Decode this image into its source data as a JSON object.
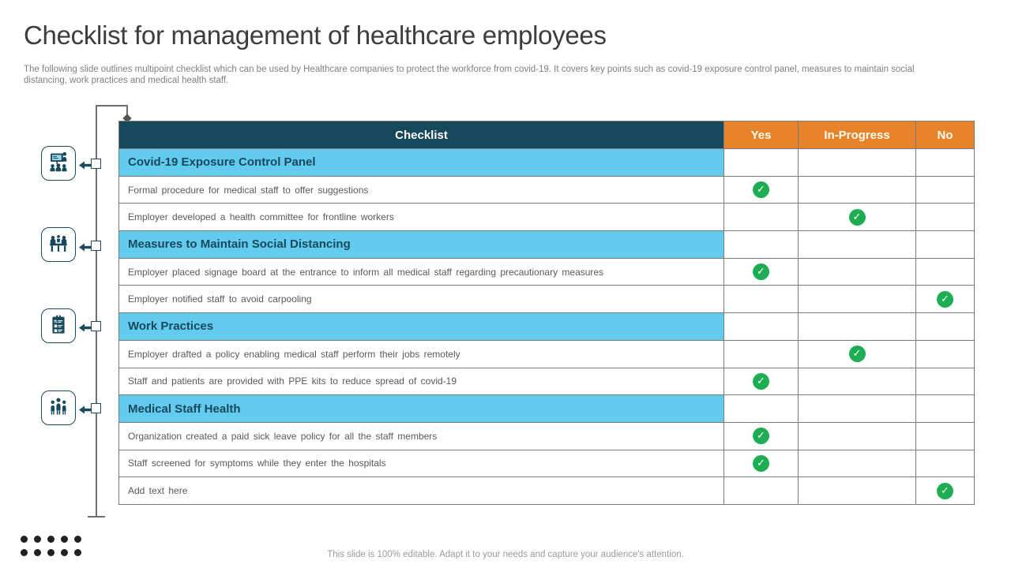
{
  "slide": {
    "title": "Checklist for management of healthcare employees",
    "subtitle": "The following slide outlines multipoint checklist which can be used by Healthcare companies to protect the workforce from covid-19. It covers key points such as covid-19 exposure control panel, measures to maintain social distancing, work practices and medical health staff.",
    "footer": "This slide is 100% editable. Adapt it to your needs and capture your audience's attention."
  },
  "icons": [
    {
      "name": "training-presentation-icon"
    },
    {
      "name": "meeting-table-icon"
    },
    {
      "name": "checklist-clipboard-icon"
    },
    {
      "name": "staff-group-icon"
    }
  ],
  "table": {
    "columns": [
      "Checklist",
      "Yes",
      "In-Progress",
      "No"
    ],
    "rows": [
      {
        "type": "section",
        "label": "Covid-19 Exposure Control Panel",
        "check": null
      },
      {
        "type": "item",
        "label": "Formal procedure for medical staff to offer suggestions",
        "check": "yes"
      },
      {
        "type": "item",
        "label": "Employer developed a health committee for frontline workers",
        "check": "in_progress"
      },
      {
        "type": "section",
        "label": "Measures to Maintain Social Distancing",
        "check": null
      },
      {
        "type": "item",
        "label": "Employer placed signage board at the entrance to inform all medical staff regarding precautionary measures",
        "check": "yes"
      },
      {
        "type": "item",
        "label": "Employer notified staff to avoid carpooling",
        "check": "no"
      },
      {
        "type": "section",
        "label": "Work Practices",
        "check": null
      },
      {
        "type": "item",
        "label": "Employer drafted a policy enabling medical staff perform their jobs remotely",
        "check": "in_progress"
      },
      {
        "type": "item",
        "label": "Staff and patients are provided with PPE kits to reduce spread of covid-19",
        "check": "yes"
      },
      {
        "type": "section",
        "label": "Medical Staff Health",
        "check": null
      },
      {
        "type": "item",
        "label": "Organization created a paid sick leave policy for all the staff members",
        "check": "yes"
      },
      {
        "type": "item",
        "label": "Staff screened for symptoms while they enter the hospitals",
        "check": "yes"
      },
      {
        "type": "item",
        "label": "Add text here",
        "check": "no"
      }
    ]
  },
  "colors": {
    "header_teal": "#17495d",
    "header_orange": "#e8832c",
    "section_blue": "#63cbee",
    "check_green": "#1ead52",
    "row_text": "#595959",
    "border_gray": "#7b7b7b"
  }
}
